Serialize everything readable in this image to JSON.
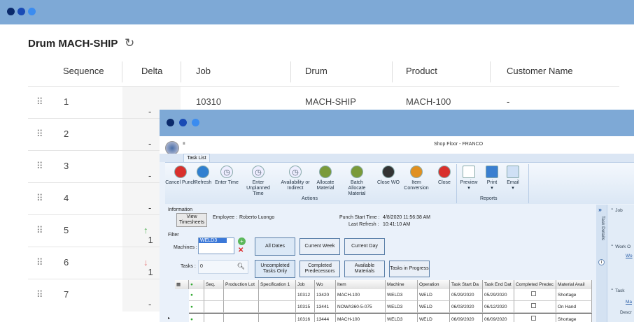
{
  "outer": {
    "dots": [
      "#0b2a6b",
      "#1a4bb5",
      "#3b8cf0"
    ]
  },
  "back": {
    "title": "Drum MACH-SHIP",
    "refresh_icon": "refresh-icon",
    "columns": [
      "Sequence",
      "Delta",
      "Job",
      "Drum",
      "Product",
      "Customer Name"
    ],
    "rows": [
      {
        "seq": "1",
        "delta": "-",
        "job": "10310",
        "drum": "MACH-SHIP",
        "product": "MACH-100",
        "customer": "-"
      },
      {
        "seq": "2",
        "delta": "-"
      },
      {
        "seq": "3",
        "delta": "-"
      },
      {
        "seq": "4",
        "delta": "-"
      },
      {
        "seq": "5",
        "delta": "1",
        "delta_dir": "up"
      },
      {
        "seq": "6",
        "delta": "1",
        "delta_dir": "down"
      },
      {
        "seq": "7",
        "delta": "-"
      }
    ],
    "colors": {
      "up": "#4caf50",
      "down": "#e57373"
    }
  },
  "front": {
    "title": "Shop Floor - FRANCO",
    "qat": "≡",
    "tab": "Task List",
    "actions": [
      {
        "label": "Cancel Punch",
        "icon": "cancel-icon"
      },
      {
        "label": "Refresh",
        "icon": "refresh-icon"
      },
      {
        "label": "Enter Time",
        "icon": "clock-icon"
      },
      {
        "label": "Enter Unplanned Time",
        "icon": "clock-icon"
      },
      {
        "label": "Availability or Indirect",
        "icon": "clock-icon"
      },
      {
        "label": "Allocate Material",
        "icon": "material-add-icon"
      },
      {
        "label": "Batch Allocate Material",
        "icon": "material-add-icon"
      },
      {
        "label": "Close WO",
        "icon": "barcode-check-icon"
      },
      {
        "label": "Item Conversion",
        "icon": "box-icon"
      },
      {
        "label": "Close",
        "icon": "stop-hand-icon"
      }
    ],
    "reports": [
      {
        "label": "Preview",
        "icon": "preview-icon"
      },
      {
        "label": "Print",
        "icon": "print-icon"
      },
      {
        "label": "Email",
        "icon": "email-icon"
      }
    ],
    "group_actions": "Actions",
    "group_reports": "Reports",
    "info": {
      "label": "Information",
      "view_timesheets": "View Timesheets",
      "employee_label": "Employee :",
      "employee": "Roberto  Luongo",
      "punch_label": "Punch Start Time :",
      "punch": "4/8/2020 11:56:38 AM",
      "refresh_label": "Last Refresh :",
      "refresh": "10:41:10 AM"
    },
    "filter": {
      "label": "Filter",
      "machines_label": "Machines :",
      "machine": "WELD3",
      "tasks_label": "Tasks :",
      "tasks_value": "0",
      "buttons": [
        "All Dates",
        "Current Week",
        "Current Day",
        "Uncompleted Tasks Only",
        "Completed Predecessors",
        "Available Materials",
        "Tasks in Progress"
      ]
    },
    "grid": {
      "columns": [
        "Seq.",
        "Production Lot",
        "Specification 1",
        "Job",
        "Wo",
        "Item",
        "Machine",
        "Operation",
        "Task Start Da",
        "Task End Dat",
        "Completed Predec",
        "Material Avail"
      ],
      "rows": [
        {
          "job": "10312",
          "wo": "13420",
          "item": "MACH-100",
          "machine": "WELD3",
          "op": "WELD",
          "start": "05/29/2020",
          "end": "05/29/2020",
          "mat": "Shortage"
        },
        {
          "job": "10315",
          "wo": "13441",
          "item": "NOWA360-5-075",
          "machine": "WELD3",
          "op": "WELD",
          "start": "06/03/2020",
          "end": "06/12/2020",
          "mat": "On Hand"
        },
        {
          "job": "10316",
          "wo": "13444",
          "item": "MACH-100",
          "machine": "WELD3",
          "op": "WELD",
          "start": "06/09/2020",
          "end": "06/09/2020",
          "mat": "Shortage"
        }
      ]
    },
    "side": {
      "strip": "Task Details",
      "sections": [
        "Job",
        "Work O",
        "Task"
      ],
      "link1": "Wo",
      "link2": "Ma",
      "desc": "Descr"
    }
  }
}
